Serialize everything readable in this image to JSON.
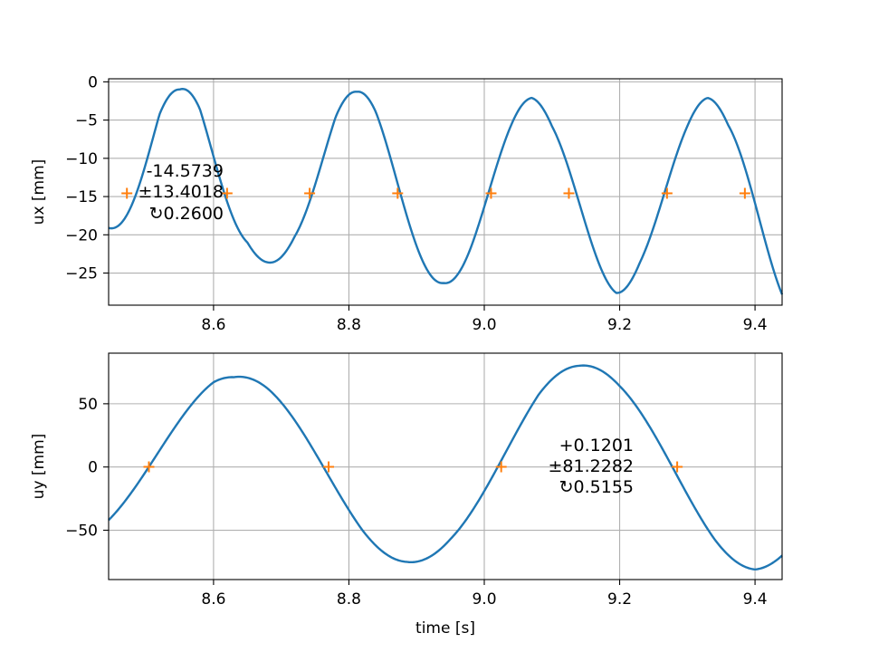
{
  "chart_data": [
    {
      "type": "line",
      "ylabel": "ux [mm]",
      "xlabel": "",
      "xlim": [
        8.445,
        9.44
      ],
      "ylim": [
        -29.2,
        0.4
      ],
      "xticks": [
        8.6,
        8.8,
        9.0,
        9.2,
        9.4
      ],
      "xtick_labels": [
        "8.6",
        "8.8",
        "9.0",
        "9.2",
        "9.4"
      ],
      "yticks": [
        0,
        -5,
        -10,
        -15,
        -20,
        -25
      ],
      "ytick_labels": [
        "0",
        "−5",
        "−10",
        "−15",
        "−20",
        "−25"
      ],
      "grid": true,
      "annotation": [
        "-14.5739",
        "±13.4018",
        "↻0.2600"
      ],
      "annotation_anchor": "upper-left",
      "model": {
        "offset": -14.5739,
        "base_amplitude": 13.4018,
        "period": 0.26,
        "phase_time": 8.486
      },
      "series": [
        {
          "x": [
            8.445,
            8.48,
            8.52,
            8.55,
            8.58,
            8.62,
            8.65,
            8.68,
            8.72,
            8.745,
            8.78,
            8.812,
            8.84,
            8.872,
            8.9,
            8.94,
            8.98,
            9.01,
            9.04,
            9.07,
            9.1,
            9.125,
            9.16,
            9.195,
            9.23,
            9.27,
            9.3,
            9.33,
            9.36,
            9.385,
            9.41,
            9.44
          ],
          "y": [
            -19.1,
            -14.2,
            -4.3,
            -1.0,
            -3.6,
            -14.7,
            -21.0,
            -23.6,
            -20.2,
            -14.6,
            -4.7,
            -1.3,
            -4.0,
            -14.5,
            -22.4,
            -26.3,
            -21.7,
            -14.6,
            -5.6,
            -2.1,
            -5.8,
            -14.6,
            -23.6,
            -27.6,
            -23.6,
            -14.6,
            -5.8,
            -2.1,
            -5.6,
            -14.6,
            -23.0,
            -27.8
          ]
        }
      ],
      "markers": {
        "x": [
          8.472,
          8.62,
          8.742,
          8.872,
          9.01,
          9.125,
          9.27,
          9.385
        ],
        "y": -14.5739,
        "symbol": "+"
      },
      "colors": {
        "line": "#1f77b4",
        "marker": "#ff7f0e"
      }
    },
    {
      "type": "line",
      "ylabel": "uy [mm]",
      "xlabel": "time [s]",
      "xlim": [
        8.445,
        9.44
      ],
      "ylim": [
        -89,
        90
      ],
      "xticks": [
        8.6,
        8.8,
        9.0,
        9.2,
        9.4
      ],
      "xtick_labels": [
        "8.6",
        "8.8",
        "9.0",
        "9.2",
        "9.4"
      ],
      "yticks": [
        50,
        0,
        -50
      ],
      "ytick_labels": [
        "50",
        "0",
        "−50"
      ],
      "grid": true,
      "annotation": [
        "+0.1201",
        "±81.2282",
        "↻0.5155"
      ],
      "annotation_anchor": "center-right",
      "model": {
        "offset": 0.1201,
        "base_amplitude": 81.2282,
        "period": 0.5155,
        "phase_time": 8.5045
      },
      "series": [
        {
          "x": [
            8.445,
            8.5,
            8.55,
            8.6,
            8.63,
            8.68,
            8.72,
            8.77,
            8.82,
            8.885,
            8.95,
            9.0,
            9.025,
            9.08,
            9.14,
            9.2,
            9.25,
            9.285,
            9.34,
            9.4,
            9.44
          ],
          "y": [
            -42,
            0,
            45,
            67,
            71,
            62,
            42,
            0,
            -50,
            -75,
            -57,
            -20,
            0,
            57,
            80,
            64,
            31,
            0,
            -57,
            -81,
            -70
          ]
        }
      ],
      "markers": {
        "x": [
          8.5045,
          8.77,
          9.025,
          9.285
        ],
        "y": 0.1201,
        "symbol": "+"
      },
      "colors": {
        "line": "#1f77b4",
        "marker": "#ff7f0e"
      }
    }
  ]
}
